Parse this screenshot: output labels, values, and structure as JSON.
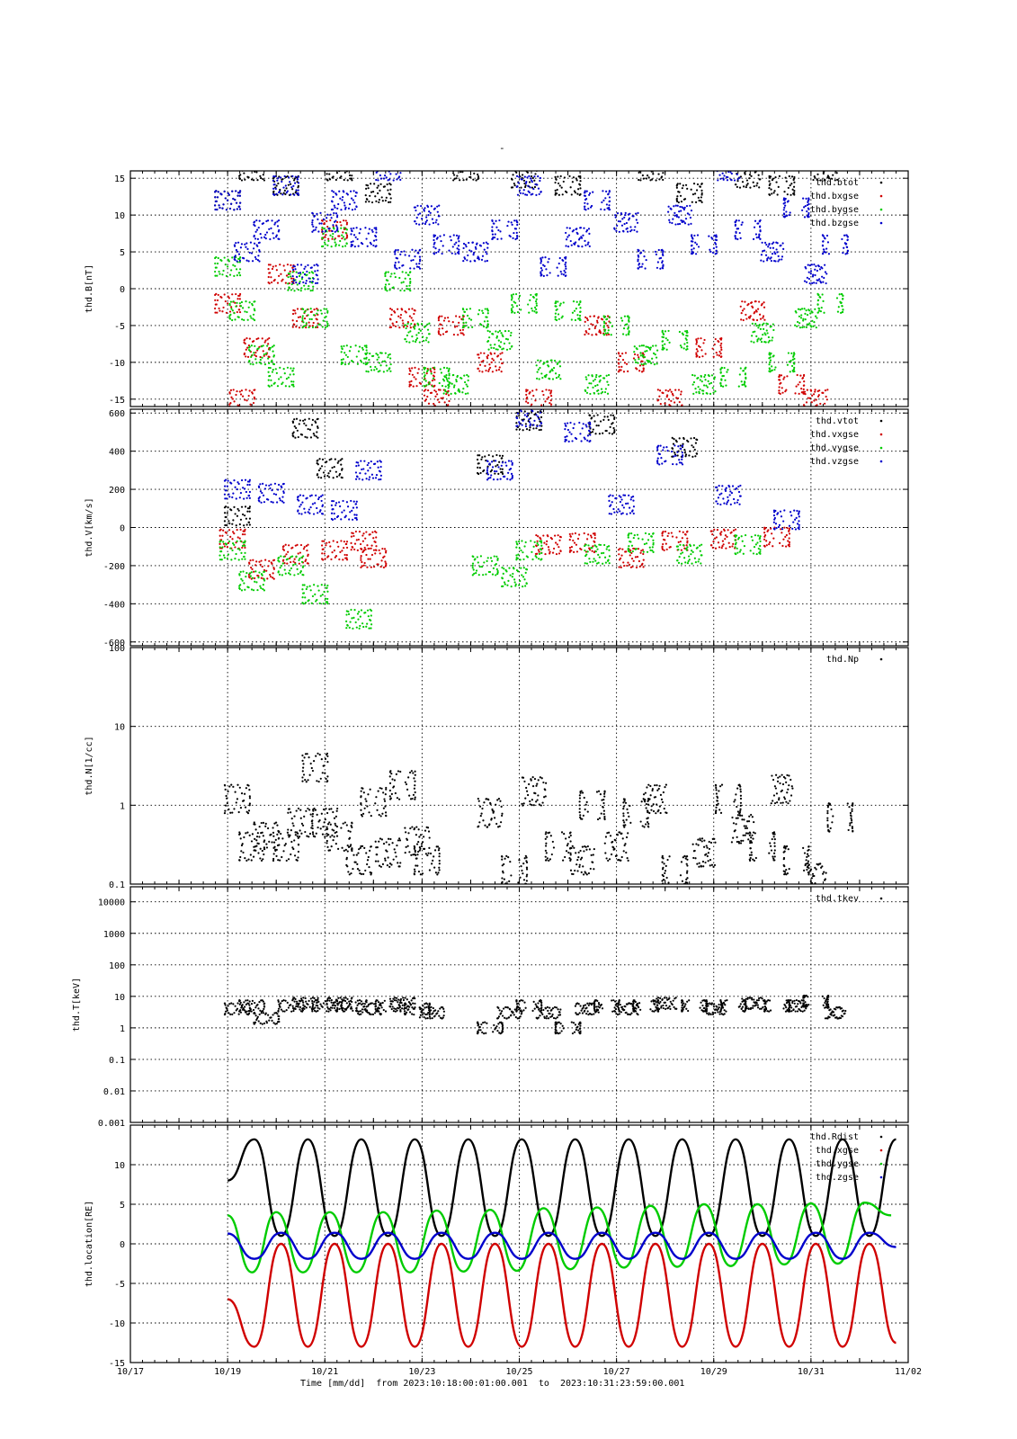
{
  "page_title": "-",
  "footer": {
    "caption": "Time [mm/dd]  from 2023:10:18:00:01:00.001  to  2023:10:31:23:59:00.001",
    "x_ticks": [
      "10/17",
      "10/19",
      "10/21",
      "10/23",
      "10/25",
      "10/27",
      "10/29",
      "10/31",
      "11/02"
    ],
    "x_range_days": [
      0,
      16
    ]
  },
  "colors": {
    "black": "#000000",
    "red": "#d00000",
    "green": "#00cc00",
    "blue": "#0000cc"
  },
  "chart_data": [
    {
      "type": "scatter",
      "ylabel": "thd.B[nT]",
      "ylim": [
        -16,
        16
      ],
      "ytick_values": [
        -15,
        -10,
        -5,
        0,
        5,
        10,
        15
      ],
      "ytick_labels": [
        "-15",
        "-10",
        "-5",
        "0",
        "5",
        "10",
        "15"
      ],
      "legend_position": "top-right",
      "series": [
        {
          "name": "thd.btot",
          "color": "#000000",
          "x": [
            1.0,
            1.5,
            2.2,
            3.3,
            4.1,
            5.9,
            7.1,
            8.0,
            9.7,
            10.5,
            11.7,
            12.4,
            13.3
          ],
          "y": [
            12,
            16,
            14,
            16,
            13,
            16,
            15,
            14,
            16,
            13,
            15,
            14,
            16
          ]
        },
        {
          "name": "thd.bxgse",
          "color": "#d00000",
          "x": [
            1.0,
            1.3,
            1.6,
            2.1,
            2.6,
            3.2,
            4.6,
            5.0,
            5.3,
            5.6,
            6.4,
            7.4,
            8.6,
            9.3,
            10.1,
            10.9,
            11.8,
            12.6,
            13.1
          ],
          "y": [
            -2,
            -15,
            -8,
            2,
            -4,
            8,
            -4,
            -12,
            -15,
            -5,
            -10,
            -15,
            -5,
            -10,
            -15,
            -8,
            -3,
            -13,
            -15
          ]
        },
        {
          "name": "thd.bygse",
          "color": "#00cc00",
          "x": [
            1.0,
            1.3,
            1.7,
            2.1,
            2.5,
            2.8,
            3.2,
            3.6,
            4.1,
            4.5,
            4.9,
            5.3,
            5.7,
            6.1,
            6.6,
            7.1,
            7.6,
            8.0,
            8.6,
            9.0,
            9.6,
            10.2,
            10.8,
            11.4,
            12.0,
            12.4,
            12.9,
            13.4
          ],
          "y": [
            3,
            -3,
            -9,
            -12,
            1,
            -4,
            7,
            -9,
            -10,
            1,
            -6,
            -12,
            -13,
            -4,
            -7,
            -2,
            -11,
            -3,
            -13,
            -5,
            -9,
            -7,
            -13,
            -12,
            -6,
            -10,
            -4,
            -2
          ]
        },
        {
          "name": "thd.bzgse",
          "color": "#0000cc",
          "x": [
            1.0,
            1.4,
            1.8,
            2.2,
            2.6,
            3.0,
            3.4,
            3.8,
            4.3,
            4.7,
            5.1,
            5.5,
            6.1,
            6.7,
            7.2,
            7.7,
            8.2,
            8.6,
            9.2,
            9.7,
            10.3,
            10.8,
            11.3,
            11.7,
            12.2,
            12.7,
            13.1,
            13.5
          ],
          "y": [
            12,
            5,
            8,
            14,
            2,
            9,
            12,
            7,
            16,
            4,
            10,
            6,
            5,
            8,
            14,
            3,
            7,
            12,
            9,
            4,
            10,
            6,
            16,
            8,
            5,
            11,
            2,
            6
          ]
        }
      ]
    },
    {
      "type": "scatter",
      "ylabel": "thd.V[km/s]",
      "ylim": [
        -620,
        620
      ],
      "ytick_values": [
        -600,
        -400,
        -200,
        0,
        200,
        400,
        600
      ],
      "ytick_labels": [
        "-600",
        "-400",
        "-200",
        "0",
        "200",
        "400",
        "600"
      ],
      "legend_position": "top-right",
      "series": [
        {
          "name": "thd.vtot",
          "color": "#000000",
          "x": [
            1.2,
            2.6,
            3.1,
            6.4,
            7.2,
            8.7,
            10.4
          ],
          "y": [
            60,
            520,
            310,
            330,
            560,
            540,
            420
          ]
        },
        {
          "name": "thd.vxgse",
          "color": "#d00000",
          "x": [
            1.1,
            1.7,
            2.4,
            3.2,
            3.8,
            4.0,
            7.6,
            8.3,
            9.3,
            10.2,
            11.2,
            12.3
          ],
          "y": [
            -60,
            -220,
            -140,
            -120,
            -70,
            -160,
            -90,
            -80,
            -160,
            -70,
            -60,
            -50
          ]
        },
        {
          "name": "thd.vygse",
          "color": "#00cc00",
          "x": [
            1.1,
            1.5,
            2.3,
            2.8,
            3.7,
            6.3,
            6.9,
            7.2,
            8.6,
            9.5,
            10.5,
            11.7
          ],
          "y": [
            -120,
            -280,
            -200,
            -350,
            -480,
            -200,
            -260,
            -120,
            -140,
            -80,
            -140,
            -90
          ]
        },
        {
          "name": "thd.vzgse",
          "color": "#0000cc",
          "x": [
            1.2,
            1.9,
            2.7,
            3.4,
            3.9,
            6.6,
            7.2,
            8.2,
            9.1,
            10.1,
            11.3,
            12.5
          ],
          "y": [
            200,
            180,
            120,
            90,
            300,
            300,
            580,
            500,
            120,
            380,
            170,
            40
          ]
        }
      ]
    },
    {
      "type": "scatter",
      "ylabel": "thd.N[1/cc]",
      "yscale": "log",
      "ylim": [
        0.1,
        100
      ],
      "ytick_values": [
        0.1,
        1,
        10,
        100
      ],
      "ytick_labels": [
        "0.1",
        "1",
        "10",
        "100"
      ],
      "legend_position": "top-right",
      "series": [
        {
          "name": "thd.Np",
          "color": "#000000",
          "x": [
            1.2,
            1.5,
            1.8,
            2.2,
            2.5,
            2.8,
            3.0,
            3.3,
            3.7,
            4.0,
            4.3,
            4.6,
            4.9,
            5.1,
            6.4,
            6.9,
            7.3,
            7.8,
            8.3,
            8.5,
            9.0,
            9.4,
            9.8,
            10.2,
            10.8,
            11.3,
            11.6,
            12.0,
            12.4,
            12.7,
            13.1,
            13.6
          ],
          "y": [
            1.2,
            0.3,
            0.4,
            0.3,
            0.6,
            3.0,
            0.6,
            0.4,
            0.2,
            1.1,
            0.25,
            1.8,
            0.35,
            0.2,
            0.8,
            0.15,
            1.5,
            0.3,
            0.2,
            1.0,
            0.3,
            0.8,
            1.2,
            0.15,
            0.25,
            1.2,
            0.5,
            0.3,
            1.6,
            0.2,
            0.12,
            0.7
          ]
        }
      ]
    },
    {
      "type": "scatter",
      "ylabel": "thd.T[keV]",
      "yscale": "log",
      "ylim": [
        0.001,
        30000
      ],
      "ytick_values": [
        0.001,
        0.01,
        0.1,
        1,
        10,
        100,
        1000,
        10000
      ],
      "ytick_labels": [
        "0.001",
        "0.01",
        "0.1",
        "1",
        "10",
        "100",
        "1000",
        "10000"
      ],
      "legend_position": "top-right",
      "series": [
        {
          "name": "thd.tkev",
          "color": "#000000",
          "x": [
            1.2,
            1.5,
            1.8,
            2.3,
            2.6,
            3.0,
            3.3,
            3.6,
            3.9,
            4.3,
            4.6,
            4.9,
            5.2,
            6.4,
            6.8,
            7.2,
            7.6,
            8.0,
            8.4,
            8.8,
            9.2,
            9.6,
            10.0,
            10.6,
            11.0,
            11.4,
            11.8,
            12.3,
            12.7,
            13.1,
            13.5
          ],
          "y": [
            4,
            5,
            2,
            5,
            6,
            5,
            6,
            5,
            4,
            5,
            6,
            4,
            3,
            1,
            3,
            5,
            3,
            1,
            4,
            5,
            4,
            5,
            6,
            5,
            4,
            5,
            6,
            5,
            5,
            7,
            3
          ]
        }
      ]
    },
    {
      "type": "line",
      "ylabel": "thd.location[RE]",
      "ylim": [
        -15,
        15
      ],
      "ytick_values": [
        -15,
        -10,
        -5,
        0,
        5,
        10
      ],
      "ytick_labels": [
        "-15",
        "-10",
        "-5",
        "0",
        "5",
        "10"
      ],
      "legend_position": "top-right",
      "x_range_days": [
        1.0,
        15.0
      ],
      "series": [
        {
          "name": "thd.Rdist",
          "color": "#000000",
          "x": [
            1.0,
            1.55,
            2.1,
            2.65,
            3.2,
            3.75,
            4.3,
            4.85,
            5.4,
            5.95,
            6.5,
            7.05,
            7.6,
            8.15,
            8.7,
            9.25,
            9.8,
            10.35,
            10.9,
            11.45,
            12.0,
            12.55,
            13.1,
            13.65,
            14.2,
            14.75
          ],
          "y": [
            8,
            13.2,
            1,
            13.2,
            1,
            13.2,
            1,
            13.2,
            1,
            13.2,
            1,
            13.2,
            1,
            13.2,
            1,
            13.2,
            1,
            13.2,
            1,
            13.2,
            1,
            13.2,
            1,
            13.2,
            1,
            13.2
          ]
        },
        {
          "name": "thd.xgse",
          "color": "#d00000",
          "x": [
            1.0,
            1.55,
            2.1,
            2.65,
            3.2,
            3.75,
            4.3,
            4.85,
            5.4,
            5.95,
            6.5,
            7.05,
            7.6,
            8.15,
            8.7,
            9.25,
            9.8,
            10.35,
            10.9,
            11.45,
            12.0,
            12.55,
            13.1,
            13.65,
            14.2,
            14.75
          ],
          "y": [
            -7,
            -13,
            0,
            -13,
            0,
            -13,
            0,
            -13,
            0,
            -13,
            0,
            -13,
            0,
            -13,
            0,
            -13,
            0,
            -13,
            0,
            -13,
            0,
            -13,
            0,
            -13,
            0,
            -12.5
          ]
        },
        {
          "name": "thd.ygse",
          "color": "#00cc00",
          "x": [
            1.0,
            1.5,
            2.0,
            2.55,
            3.1,
            3.65,
            4.2,
            4.75,
            5.3,
            5.85,
            6.4,
            6.95,
            7.5,
            8.05,
            8.6,
            9.15,
            9.7,
            10.25,
            10.8,
            11.35,
            11.9,
            12.45,
            13.0,
            13.55,
            14.1,
            14.65
          ],
          "y": [
            3.6,
            -3.6,
            4,
            -3.6,
            4,
            -3.6,
            4,
            -3.6,
            4.2,
            -3.5,
            4.3,
            -3.4,
            4.5,
            -3.2,
            4.6,
            -3.0,
            4.8,
            -2.9,
            5.0,
            -2.8,
            5.0,
            -2.6,
            5.1,
            -2.5,
            5.2,
            3.6
          ]
        },
        {
          "name": "thd.zgse",
          "color": "#0000cc",
          "x": [
            1.0,
            1.55,
            2.1,
            2.65,
            3.2,
            3.75,
            4.3,
            4.85,
            5.4,
            5.95,
            6.5,
            7.05,
            7.6,
            8.15,
            8.7,
            9.25,
            9.8,
            10.35,
            10.9,
            11.45,
            12.0,
            12.55,
            13.1,
            13.65,
            14.2,
            14.75
          ],
          "y": [
            1.3,
            -1.9,
            1.4,
            -1.9,
            1.4,
            -1.9,
            1.4,
            -1.9,
            1.4,
            -1.9,
            1.4,
            -1.9,
            1.4,
            -1.9,
            1.4,
            -1.9,
            1.4,
            -1.9,
            1.4,
            -1.9,
            1.4,
            -1.9,
            1.4,
            -1.9,
            1.4,
            -0.4
          ]
        }
      ]
    }
  ]
}
